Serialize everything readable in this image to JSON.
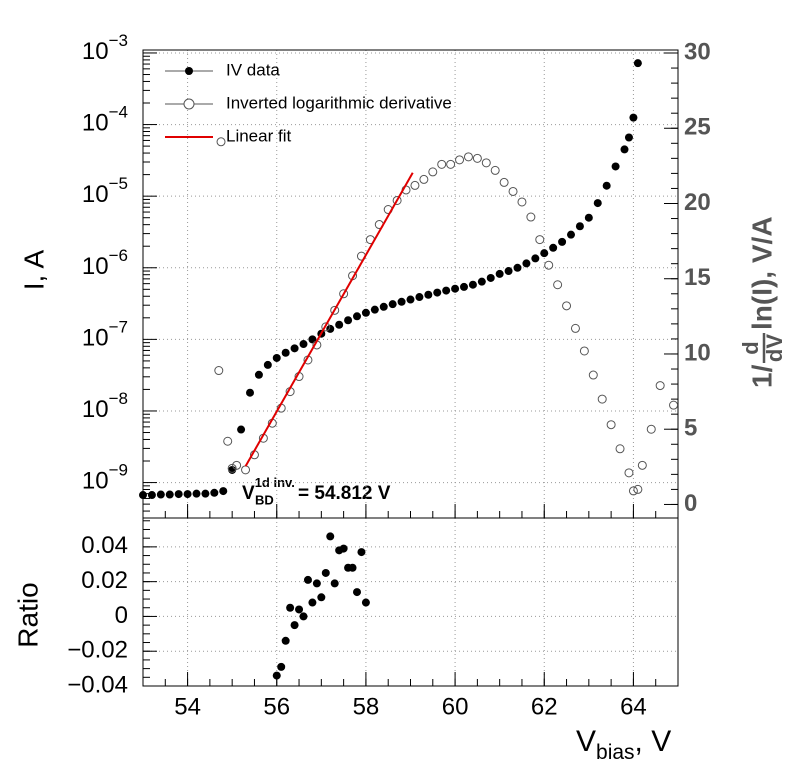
{
  "chart_data": [
    {
      "type": "scatter",
      "log_y": true,
      "grid": true,
      "legend": "top-left",
      "ylabel": "I, A",
      "y2label": {
        "prefix": "1/",
        "num": "d",
        "den": "dV",
        "suffix": "ln(I),  V/A"
      },
      "annotation": {
        "base": "V",
        "sub": "BD",
        "sup": "1d inv.",
        "rest": " = 54.812 V"
      },
      "xlim": [
        53,
        65
      ],
      "xticks": [
        54,
        56,
        58,
        60,
        62,
        64
      ],
      "ylim": [
        3.2e-10,
        0.0011
      ],
      "yticks": [
        {
          "value": 0.001,
          "label": "10",
          "exponent": "−3"
        },
        {
          "value": 0.0001,
          "label": "10",
          "exponent": "−4"
        },
        {
          "value": 1e-05,
          "label": "10",
          "exponent": "−5"
        },
        {
          "value": 1e-06,
          "label": "10",
          "exponent": "−6"
        },
        {
          "value": 1e-07,
          "label": "10",
          "exponent": "−7"
        },
        {
          "value": 1e-08,
          "label": "10",
          "exponent": "−8"
        },
        {
          "value": 1e-09,
          "label": "10",
          "exponent": "−9"
        }
      ],
      "y2lim": [
        -0.9,
        30.2
      ],
      "y2ticks": [
        0,
        5,
        10,
        15,
        20,
        25,
        30
      ],
      "series": [
        {
          "name": "IV data",
          "color": "#000000",
          "marker": "filled",
          "axis": "y",
          "x": [
            53.0,
            53.2,
            53.4,
            53.6,
            53.8,
            54.0,
            54.2,
            54.4,
            54.6,
            54.8,
            55.0,
            55.2,
            55.4,
            55.6,
            55.8,
            56.0,
            56.2,
            56.4,
            56.6,
            56.8,
            57.0,
            57.2,
            57.4,
            57.6,
            57.8,
            58.0,
            58.2,
            58.4,
            58.6,
            58.8,
            59.0,
            59.2,
            59.4,
            59.6,
            59.8,
            60.0,
            60.2,
            60.4,
            60.6,
            60.8,
            61.0,
            61.2,
            61.4,
            61.6,
            61.8,
            62.0,
            62.2,
            62.4,
            62.6,
            62.8,
            63.0,
            63.2,
            63.4,
            63.6,
            63.8,
            63.9,
            64.0,
            64.1
          ],
          "values": [
            6.7e-10,
            6.7e-10,
            6.8e-10,
            6.8e-10,
            6.9e-10,
            6.9e-10,
            7e-10,
            7e-10,
            7.2e-10,
            7.6e-10,
            1.5e-09,
            5.5e-09,
            1.8e-08,
            3.2e-08,
            4.4e-08,
            5.5e-08,
            6.5e-08,
            7.5e-08,
            8.6e-08,
            1e-07,
            1.2e-07,
            1.4e-07,
            1.6e-07,
            1.85e-07,
            2.1e-07,
            2.35e-07,
            2.6e-07,
            2.85e-07,
            3.1e-07,
            3.35e-07,
            3.6e-07,
            3.9e-07,
            4.2e-07,
            4.5e-07,
            4.8e-07,
            5.1e-07,
            5.4e-07,
            5.8e-07,
            6.4e-07,
            7.2e-07,
            8.2e-07,
            9e-07,
            1e-06,
            1.15e-06,
            1.35e-06,
            1.6e-06,
            1.9e-06,
            2.3e-06,
            2.9e-06,
            3.8e-06,
            5e-06,
            8e-06,
            1.4e-05,
            2.6e-05,
            4.5e-05,
            6.6e-05,
            0.000125,
            0.00072
          ]
        },
        {
          "name": "Inverted logarithmic derivative",
          "color": "#555555",
          "marker": "open",
          "axis": "y2",
          "x": [
            54.7,
            54.75,
            54.9,
            55.0,
            55.1,
            55.3,
            55.5,
            55.7,
            55.9,
            56.1,
            56.3,
            56.5,
            56.7,
            56.9,
            57.1,
            57.3,
            57.5,
            57.7,
            57.9,
            58.1,
            58.3,
            58.5,
            58.7,
            58.9,
            59.1,
            59.3,
            59.5,
            59.7,
            59.9,
            60.1,
            60.3,
            60.5,
            60.7,
            60.9,
            61.1,
            61.3,
            61.5,
            61.7,
            61.9,
            62.1,
            62.3,
            62.5,
            62.7,
            62.9,
            63.1,
            63.3,
            63.5,
            63.7,
            63.9,
            64.0,
            64.1,
            64.2,
            64.4,
            64.6,
            64.9
          ],
          "values": [
            8.9,
            24.1,
            4.2,
            2.4,
            2.6,
            2.3,
            3.3,
            4.4,
            5.4,
            6.4,
            7.5,
            8.5,
            9.6,
            10.6,
            11.8,
            12.9,
            14.0,
            15.2,
            16.5,
            17.6,
            18.6,
            19.6,
            20.2,
            20.9,
            21.2,
            21.6,
            22.1,
            22.6,
            22.6,
            22.9,
            23.1,
            23.0,
            22.7,
            22.2,
            21.4,
            20.8,
            20.1,
            19.1,
            17.6,
            15.9,
            14.6,
            13.2,
            11.7,
            10.2,
            8.6,
            7.0,
            5.3,
            3.7,
            2.1,
            0.9,
            1.0,
            2.6,
            5.0,
            7.9,
            6.6
          ]
        },
        {
          "name": "Linear fit",
          "color": "#e00000",
          "marker": "line",
          "axis": "y2",
          "x": [
            55.3,
            59.05
          ],
          "values": [
            2.54,
            22.04
          ]
        }
      ]
    },
    {
      "type": "scatter",
      "grid": true,
      "ylabel": "Ratio",
      "xlabel": {
        "base": "V",
        "sub": "bias",
        "rest": ", V"
      },
      "xlim": [
        53,
        65
      ],
      "xticks": [
        54,
        56,
        58,
        60,
        62,
        64
      ],
      "ylim": [
        -0.04,
        0.0566
      ],
      "yticks": [
        0.04,
        0.02,
        0,
        {
          "value": -0.02,
          "label": "−0.02"
        },
        {
          "value": -0.04,
          "label": "−0.04"
        }
      ],
      "series": [
        {
          "color": "#000000",
          "marker": "filled",
          "x": [
            56.0,
            56.1,
            56.2,
            56.3,
            56.4,
            56.5,
            56.6,
            56.7,
            56.8,
            56.9,
            57.0,
            57.1,
            57.2,
            57.3,
            57.4,
            57.5,
            57.6,
            57.7,
            57.8,
            57.9,
            58.0
          ],
          "values": [
            -0.034,
            -0.029,
            -0.014,
            0.005,
            -0.005,
            0.004,
            0.0,
            0.021,
            0.008,
            0.019,
            0.011,
            0.025,
            0.046,
            0.019,
            0.038,
            0.039,
            0.028,
            0.028,
            0.014,
            0.037,
            0.008
          ]
        }
      ]
    }
  ]
}
